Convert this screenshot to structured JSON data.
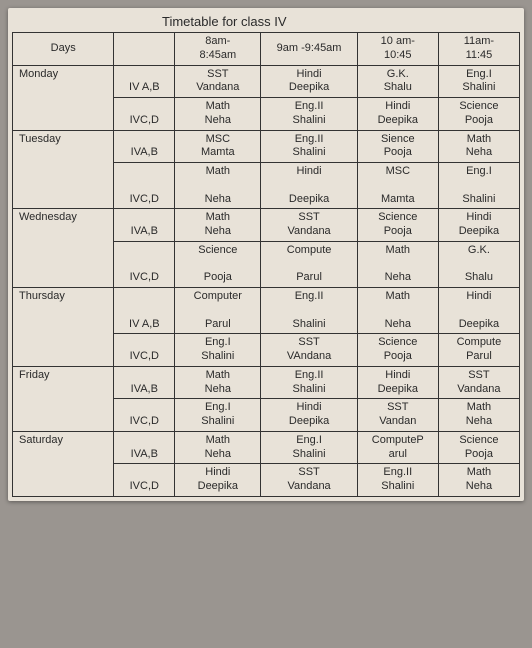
{
  "title": "Timetable for class IV",
  "colors": {
    "page_bg": "#e8e2d8",
    "body_bg": "#9a9590",
    "border": "#333",
    "text": "#2a2a2a"
  },
  "font": {
    "family": "Arial",
    "title_size_pt": 13,
    "cell_size_pt": 11
  },
  "columns": [
    "Days",
    "",
    "8am-\n8:45am",
    "9am -9:45am",
    "10 am-\n10:45",
    "11am-\n11:45"
  ],
  "days": [
    {
      "name": "Monday",
      "sections": [
        {
          "sec": "IV A,B",
          "cells": [
            "SST\nVandana",
            "Hindi\nDeepika",
            "G.K.\nShalu",
            "Eng.I\nShalini"
          ]
        },
        {
          "sec": "IVC,D",
          "cells": [
            "Math\nNeha",
            "Eng.II\nShalini",
            "Hindi\nDeepika",
            "Science\nPooja"
          ]
        }
      ]
    },
    {
      "name": "Tuesday",
      "sections": [
        {
          "sec": "IVA,B",
          "cells": [
            "MSC\nMamta",
            "Eng.II\nShalini",
            "Sience\nPooja",
            "Math\nNeha"
          ]
        },
        {
          "sec": "IVC,D",
          "cells": [
            "Math\n\nNeha",
            "Hindi\n\nDeepika",
            "MSC\n\nMamta",
            "Eng.I\n\nShalini"
          ]
        }
      ]
    },
    {
      "name": "Wednesday",
      "sections": [
        {
          "sec": "IVA,B",
          "cells": [
            "Math\nNeha",
            "SST\nVandana",
            "Science\nPooja",
            "Hindi\nDeepika"
          ]
        },
        {
          "sec": "IVC,D",
          "cells": [
            "Science\n\nPooja",
            "Compute\n\nParul",
            "Math\n\nNeha",
            "G.K.\n\nShalu"
          ]
        }
      ]
    },
    {
      "name": "Thursday",
      "sections": [
        {
          "sec": "IV A,B",
          "cells": [
            "Computer\n\nParul",
            "Eng.II\n\nShalini",
            "Math\n\nNeha",
            "Hindi\n\nDeepika"
          ]
        },
        {
          "sec": "IVC,D",
          "cells": [
            "Eng.I\nShalini",
            "SST\nVAndana",
            "Science\nPooja",
            "Compute\nParul"
          ]
        }
      ]
    },
    {
      "name": "Friday",
      "sections": [
        {
          "sec": "IVA,B",
          "cells": [
            "Math\nNeha",
            "Eng.II\nShalini",
            "Hindi\nDeepika",
            "SST\nVandana"
          ]
        },
        {
          "sec": "IVC,D",
          "cells": [
            "Eng.I\nShalini",
            "Hindi\nDeepika",
            "SST\nVandan",
            "Math\nNeha"
          ]
        }
      ]
    },
    {
      "name": "Saturday",
      "sections": [
        {
          "sec": "IVA,B",
          "cells": [
            "Math\nNeha",
            "Eng.I\nShalini",
            "ComputeP\narul",
            "Science\nPooja"
          ]
        },
        {
          "sec": "IVC,D",
          "cells": [
            "Hindi\nDeepika",
            "SST\nVandana",
            "Eng.II\nShalini",
            "Math\nNeha"
          ]
        }
      ]
    }
  ]
}
